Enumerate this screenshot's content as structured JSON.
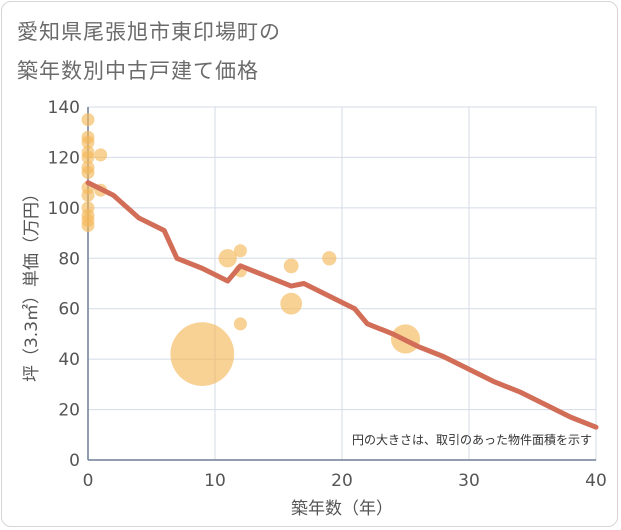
{
  "chart_data": {
    "type": "scatter",
    "title_line1": "愛知県尾張旭市東印場町の",
    "title_line2": "築年数別中古戸建て価格",
    "xlabel": "築年数（年）",
    "ylabel": "坪（3.3㎡）単価（万円）",
    "note": "円の大きさは、取引のあった物件面積を示す",
    "xlim": [
      0,
      40
    ],
    "ylim": [
      0,
      140
    ],
    "xticks": [
      0,
      10,
      20,
      30,
      40
    ],
    "yticks": [
      0,
      20,
      40,
      60,
      80,
      100,
      120,
      140
    ],
    "grid": true,
    "colors": {
      "bubble": "#f5b95a",
      "line": "#d26e58",
      "grid": "#d4dbe6",
      "axis": "#6f7f95"
    },
    "scatter": [
      {
        "x": 0,
        "y": 135,
        "size": 1
      },
      {
        "x": 0,
        "y": 128,
        "size": 1
      },
      {
        "x": 0,
        "y": 126,
        "size": 1
      },
      {
        "x": 0,
        "y": 122,
        "size": 1
      },
      {
        "x": 0,
        "y": 120,
        "size": 1
      },
      {
        "x": 0,
        "y": 116,
        "size": 1
      },
      {
        "x": 0,
        "y": 114,
        "size": 1
      },
      {
        "x": 0,
        "y": 108,
        "size": 1
      },
      {
        "x": 0,
        "y": 105,
        "size": 1
      },
      {
        "x": 0,
        "y": 100,
        "size": 1
      },
      {
        "x": 0,
        "y": 97,
        "size": 1
      },
      {
        "x": 0,
        "y": 95,
        "size": 1
      },
      {
        "x": 0,
        "y": 93,
        "size": 1
      },
      {
        "x": 1,
        "y": 121,
        "size": 1
      },
      {
        "x": 1,
        "y": 107,
        "size": 1
      },
      {
        "x": 9,
        "y": 42,
        "size": 24
      },
      {
        "x": 11,
        "y": 80,
        "size": 2
      },
      {
        "x": 12,
        "y": 83,
        "size": 1
      },
      {
        "x": 12,
        "y": 75,
        "size": 1
      },
      {
        "x": 12,
        "y": 54,
        "size": 1
      },
      {
        "x": 16,
        "y": 77,
        "size": 1.3
      },
      {
        "x": 16,
        "y": 62,
        "size": 2.8
      },
      {
        "x": 19,
        "y": 80,
        "size": 1.2
      },
      {
        "x": 25,
        "y": 48,
        "size": 5
      }
    ],
    "line": {
      "x": [
        0,
        2,
        4,
        6,
        7,
        9,
        11,
        12,
        14,
        16,
        17,
        19,
        21,
        22,
        24,
        26,
        28,
        30,
        32,
        34,
        36,
        38,
        40
      ],
      "y": [
        110,
        105,
        96,
        91,
        80,
        76,
        71,
        77,
        73,
        69,
        70,
        65,
        60,
        54,
        50,
        45,
        41,
        36,
        31,
        27,
        22,
        17,
        13
      ]
    }
  }
}
